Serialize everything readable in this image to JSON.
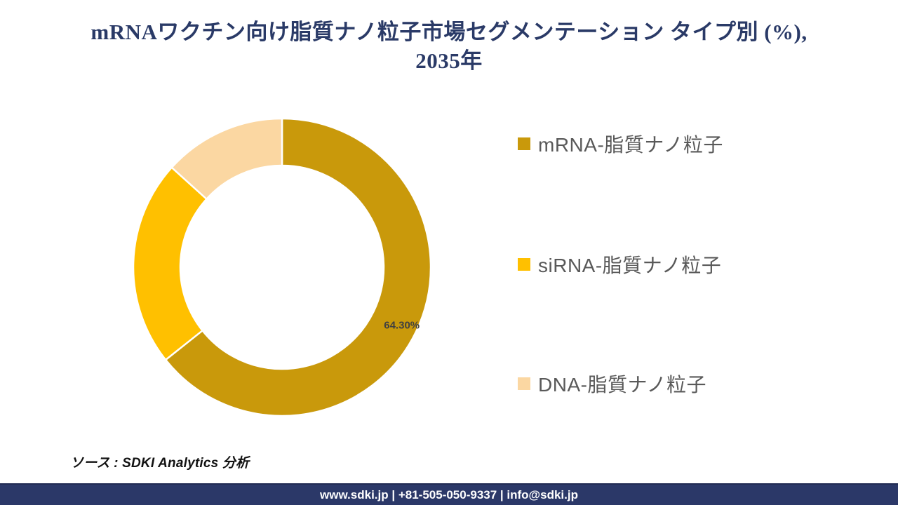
{
  "title": {
    "line1": "mRNAワクチン向け脂質ナノ粒子市場セグメンテーション タイプ別 (%),",
    "line2": "2035年",
    "full": "mRNAワクチン向け脂質ナノ粒子市場セグメンテーション タイプ別 (%), 2035年",
    "color": "#2A3A67"
  },
  "chart_data": {
    "type": "pie",
    "subtype": "donut",
    "title": "mRNAワクチン向け脂質ナノ粒子市場セグメンテーション タイプ別 (%), 2035年",
    "unit": "%",
    "start_angle_deg": 0,
    "direction": "clockwise",
    "inner_radius_ratio": 0.685,
    "gap_stroke_color": "#ffffff",
    "label_color": "#404040",
    "legend_position": "right",
    "slices": [
      {
        "name": "mRNA-脂質ナノ粒子",
        "value": 64.3,
        "color": "#C9990B",
        "label": "64.30%"
      },
      {
        "name": "siRNA-脂質ナノ粒子",
        "value": 22.4,
        "color": "#FFC000",
        "label": ""
      },
      {
        "name": "DNA-脂質ナノ粒子",
        "value": 13.3,
        "color": "#FBD7A2",
        "label": ""
      }
    ]
  },
  "source": {
    "text": "ソース : SDKI Analytics 分析"
  },
  "footer": {
    "text": "www.sdki.jp | +81-505-050-9337 | info@sdki.jp",
    "background": "#2B3868"
  }
}
